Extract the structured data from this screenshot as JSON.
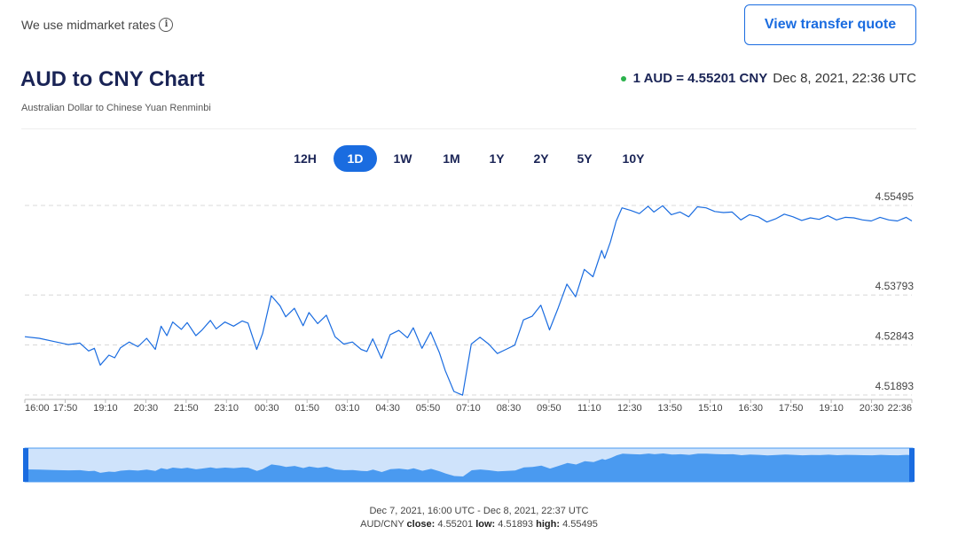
{
  "header": {
    "rates_note": "We use midmarket rates",
    "info_icon": "info-icon",
    "quote_button": "View transfer quote",
    "title": "AUD to CNY Chart",
    "subtitle": "Australian Dollar to Chinese Yuan Renminbi",
    "rate_label": "1 AUD = 4.55201 CNY",
    "rate_time": "Dec 8, 2021, 22:36 UTC",
    "status_color": "#2bb24c"
  },
  "tabs": [
    {
      "label": "12H",
      "active": false
    },
    {
      "label": "1D",
      "active": true
    },
    {
      "label": "1W",
      "active": false
    },
    {
      "label": "1M",
      "active": false
    },
    {
      "label": "1Y",
      "active": false
    },
    {
      "label": "2Y",
      "active": false
    },
    {
      "label": "5Y",
      "active": false
    },
    {
      "label": "10Y",
      "active": false
    }
  ],
  "chart_data": {
    "type": "line",
    "title": "",
    "xlabel": "",
    "ylabel": "",
    "grid": true,
    "accent_color": "#1a6ce0",
    "x_tick_labels": [
      "16:00",
      "17:50",
      "19:10",
      "20:30",
      "21:50",
      "23:10",
      "00:30",
      "01:50",
      "03:10",
      "04:30",
      "05:50",
      "07:10",
      "08:30",
      "09:50",
      "11:10",
      "12:30",
      "13:50",
      "15:10",
      "16:30",
      "17:50",
      "19:10",
      "20:30",
      "22:36"
    ],
    "y_tick_labels": [
      4.55495,
      4.53793,
      4.52843,
      4.51893
    ],
    "ylim": [
      4.51893,
      4.55495
    ],
    "x_range_hours": [
      0,
      30.6
    ],
    "series": [
      {
        "x": [
          0,
          0.5,
          1.0,
          1.5,
          1.9,
          2.2,
          2.4,
          2.6,
          2.9,
          3.1,
          3.3,
          3.6,
          3.9,
          4.2,
          4.5,
          4.7,
          4.9,
          5.1,
          5.4,
          5.6,
          5.9,
          6.1,
          6.4,
          6.6,
          6.9,
          7.2,
          7.5,
          7.7,
          8.0,
          8.2,
          8.5,
          8.8,
          9.0,
          9.3,
          9.6,
          9.8,
          10.1,
          10.4,
          10.7,
          11.0,
          11.3,
          11.6,
          11.8,
          12.0,
          12.3,
          12.6,
          12.9,
          13.2,
          13.4,
          13.7,
          14.0,
          14.3,
          14.5,
          14.8,
          15.1,
          15.4,
          15.7,
          16.0,
          16.3,
          16.6,
          16.9,
          17.2,
          17.5,
          17.8,
          18.1,
          18.4,
          18.7,
          19.0,
          19.3,
          19.6,
          19.9,
          20.0,
          20.2,
          20.4,
          20.6,
          20.9,
          21.2,
          21.5,
          21.7,
          22.0,
          22.3,
          22.6,
          22.9,
          23.2,
          23.5,
          23.8,
          24.1,
          24.4,
          24.7,
          25.0,
          25.3,
          25.6,
          25.9,
          26.2,
          26.5,
          26.8,
          27.1,
          27.4,
          27.7,
          28.0,
          28.3,
          28.6,
          28.9,
          29.2,
          29.5,
          29.8,
          30.1,
          30.4,
          30.6
        ],
        "y": [
          4.53,
          4.5297,
          4.5291,
          4.5285,
          4.5288,
          4.5273,
          4.5278,
          4.5246,
          4.5265,
          4.526,
          4.5279,
          4.529,
          4.5281,
          4.5297,
          4.5276,
          4.532,
          4.5302,
          4.5328,
          4.5314,
          4.5327,
          4.5302,
          4.5312,
          4.5331,
          4.5315,
          4.5328,
          4.532,
          4.533,
          4.5326,
          4.5276,
          4.5306,
          4.5378,
          4.5359,
          4.5338,
          4.5354,
          4.5321,
          4.5346,
          4.5325,
          4.5341,
          4.53,
          4.5286,
          4.529,
          4.5276,
          4.5272,
          4.5296,
          4.5259,
          4.5304,
          4.5312,
          4.5298,
          4.5317,
          4.5278,
          4.5309,
          4.527,
          4.5236,
          4.5196,
          4.5189,
          4.5286,
          4.5299,
          4.5286,
          4.5268,
          4.5276,
          4.5284,
          4.5332,
          4.5339,
          4.536,
          4.5313,
          4.5355,
          4.54,
          4.5376,
          4.5428,
          4.5414,
          4.5464,
          4.5449,
          4.548,
          4.552,
          4.5545,
          4.554,
          4.5534,
          4.5548,
          4.5537,
          4.5549,
          4.5532,
          4.5537,
          4.5528,
          4.5547,
          4.5545,
          4.5538,
          4.5536,
          4.5537,
          4.5522,
          4.5532,
          4.5528,
          4.5518,
          4.5524,
          4.5533,
          4.5528,
          4.5521,
          4.5526,
          4.5523,
          4.553,
          4.5522,
          4.5527,
          4.5526,
          4.5522,
          4.552,
          4.5527,
          4.5522,
          4.552,
          4.5527,
          4.552
        ]
      }
    ],
    "range_label": "Dec 7, 2021, 16:00 UTC - Dec 8, 2021, 22:37 UTC",
    "summary": {
      "pair": "AUD/CNY",
      "close_label": "close:",
      "close": "4.55201",
      "low_label": "low:",
      "low": "4.51893",
      "high_label": "high:",
      "high": "4.55495"
    }
  }
}
